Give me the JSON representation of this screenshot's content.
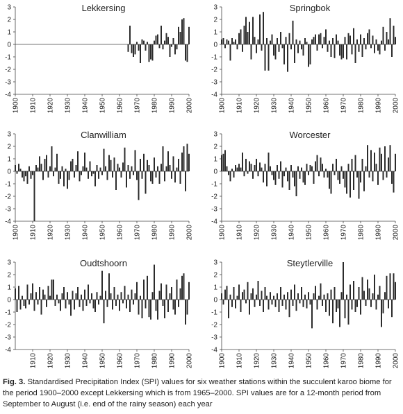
{
  "chart_data": [
    {
      "type": "bar",
      "title": "Lekkersing",
      "color": "#2b2b2b",
      "xlim": [
        1900,
        2000
      ],
      "ylim": [
        -4,
        3
      ],
      "xticks": [
        1900,
        1910,
        1920,
        1930,
        1940,
        1950,
        1960,
        1970,
        1980,
        1990,
        2000
      ],
      "yticks": [
        -4,
        -3,
        -2,
        -1,
        0,
        1,
        2,
        3
      ],
      "x": [
        1965,
        1966,
        1967,
        1968,
        1969,
        1970,
        1971,
        1972,
        1973,
        1974,
        1975,
        1976,
        1977,
        1978,
        1979,
        1980,
        1981,
        1982,
        1983,
        1984,
        1985,
        1986,
        1987,
        1988,
        1989,
        1990,
        1991,
        1992,
        1993,
        1994,
        1995,
        1996,
        1997,
        1998,
        1999,
        2000
      ],
      "values": [
        -0.6,
        1.5,
        -0.7,
        -1.0,
        -0.8,
        0.2,
        -0.5,
        -1.5,
        0.4,
        0.3,
        -0.5,
        0.2,
        -1.4,
        -1.2,
        -1.3,
        0.3,
        0.7,
        0.8,
        -0.3,
        1.5,
        -0.4,
        0.3,
        0.9,
        0.6,
        -1.0,
        -0.2,
        0.5,
        -0.8,
        -0.4,
        1.4,
        1.0,
        2.0,
        2.1,
        -1.3,
        -1.4,
        1.4
      ]
    },
    {
      "type": "bar",
      "title": "Springbok",
      "color": "#2b2b2b",
      "xlim": [
        1900,
        2000
      ],
      "ylim": [
        -4,
        3
      ],
      "xticks": [
        1900,
        1910,
        1920,
        1930,
        1940,
        1950,
        1960,
        1970,
        1980,
        1990,
        2000
      ],
      "yticks": [
        -4,
        -3,
        -2,
        -1,
        0,
        1,
        2,
        3
      ],
      "x": [
        1900,
        1901,
        1902,
        1903,
        1904,
        1905,
        1906,
        1907,
        1908,
        1909,
        1910,
        1911,
        1912,
        1913,
        1914,
        1915,
        1916,
        1917,
        1918,
        1919,
        1920,
        1921,
        1922,
        1923,
        1924,
        1925,
        1926,
        1927,
        1928,
        1929,
        1930,
        1931,
        1932,
        1933,
        1934,
        1935,
        1936,
        1937,
        1938,
        1939,
        1940,
        1941,
        1942,
        1943,
        1944,
        1945,
        1946,
        1947,
        1948,
        1949,
        1950,
        1951,
        1952,
        1953,
        1954,
        1955,
        1956,
        1957,
        1958,
        1959,
        1960,
        1961,
        1962,
        1963,
        1964,
        1965,
        1966,
        1967,
        1968,
        1969,
        1970,
        1971,
        1972,
        1973,
        1974,
        1975,
        1976,
        1977,
        1978,
        1979,
        1980,
        1981,
        1982,
        1983,
        1984,
        1985,
        1986,
        1987,
        1988,
        1989,
        1990,
        1991,
        1992,
        1993,
        1994,
        1995,
        1996,
        1997,
        1998,
        1999,
        2000
      ],
      "values": [
        0.4,
        0.5,
        -0.3,
        0.4,
        0.3,
        -1.3,
        0.5,
        0.2,
        0.4,
        -0.4,
        0.9,
        1.2,
        -0.6,
        1.5,
        2.2,
        1.0,
        1.8,
        -1.2,
        2.2,
        0.6,
        -0.7,
        0.4,
        2.4,
        -0.5,
        2.6,
        -2.1,
        0.5,
        -2.1,
        0.3,
        0.8,
        -0.9,
        -1.2,
        0.5,
        -0.6,
        1.0,
        -0.3,
        -1.6,
        0.6,
        -2.2,
        0.9,
        -0.4,
        1.9,
        -1.5,
        0.4,
        -0.7,
        0.3,
        -0.4,
        -0.9,
        0.5,
        0.2,
        -1.8,
        -1.6,
        0.4,
        0.6,
        0.8,
        -0.5,
        0.8,
        0.9,
        -0.3,
        0.6,
        1.2,
        -0.6,
        0.3,
        -1.0,
        0.5,
        -1.1,
        0.8,
        0.3,
        -0.9,
        -1.2,
        -1.1,
        0.6,
        -1.2,
        0.9,
        0.7,
        -0.8,
        1.3,
        -1.5,
        0.4,
        -0.6,
        0.8,
        -1.0,
        0.5,
        -0.4,
        0.9,
        1.2,
        -0.3,
        0.7,
        -0.7,
        0.4,
        -0.5,
        -0.8,
        0.3,
        1.4,
        -0.5,
        1.0,
        0.4,
        2.1,
        -1.0,
        1.5,
        0.6
      ]
    },
    {
      "type": "bar",
      "title": "Clanwilliam",
      "color": "#2b2b2b",
      "xlim": [
        1900,
        2000
      ],
      "ylim": [
        -4,
        3
      ],
      "xticks": [
        1900,
        1910,
        1920,
        1930,
        1940,
        1950,
        1960,
        1970,
        1980,
        1990,
        2000
      ],
      "yticks": [
        -4,
        -3,
        -2,
        -1,
        0,
        1,
        2,
        3
      ],
      "x": [
        1900,
        1901,
        1902,
        1903,
        1904,
        1905,
        1906,
        1907,
        1908,
        1909,
        1910,
        1911,
        1912,
        1913,
        1914,
        1915,
        1916,
        1917,
        1918,
        1919,
        1920,
        1921,
        1922,
        1923,
        1924,
        1925,
        1926,
        1927,
        1928,
        1929,
        1930,
        1931,
        1932,
        1933,
        1934,
        1935,
        1936,
        1937,
        1938,
        1939,
        1940,
        1941,
        1942,
        1943,
        1944,
        1945,
        1946,
        1947,
        1948,
        1949,
        1950,
        1951,
        1952,
        1953,
        1954,
        1955,
        1956,
        1957,
        1958,
        1959,
        1960,
        1961,
        1962,
        1963,
        1964,
        1965,
        1966,
        1967,
        1968,
        1969,
        1970,
        1971,
        1972,
        1973,
        1974,
        1975,
        1976,
        1977,
        1978,
        1979,
        1980,
        1981,
        1982,
        1983,
        1984,
        1985,
        1986,
        1987,
        1988,
        1989,
        1990,
        1991,
        1992,
        1993,
        1994,
        1995,
        1996,
        1997,
        1998,
        1999,
        2000
      ],
      "values": [
        0.5,
        -0.2,
        0.6,
        0.2,
        -0.5,
        -0.8,
        -0.4,
        -1.0,
        0.4,
        -0.6,
        -0.3,
        -4.0,
        0.5,
        0.3,
        1.2,
        0.6,
        -0.7,
        1.0,
        1.3,
        -0.5,
        0.4,
        2.0,
        -0.4,
        0.3,
        1.4,
        -1.0,
        -0.6,
        0.4,
        -1.2,
        0.2,
        -1.4,
        -0.7,
        0.8,
        1.0,
        -0.5,
        0.5,
        1.6,
        -0.8,
        -0.3,
        0.4,
        1.5,
        0.3,
        -0.6,
        0.8,
        -0.4,
        -0.2,
        -1.2,
        0.5,
        -0.6,
        0.3,
        -0.3,
        1.8,
        0.4,
        -0.7,
        1.3,
        0.9,
        -0.5,
        1.1,
        -1.5,
        0.6,
        0.3,
        -0.5,
        0.7,
        1.9,
        -1.3,
        0.5,
        -0.6,
        0.4,
        -0.3,
        1.7,
        -0.7,
        -2.3,
        1.0,
        -0.6,
        1.4,
        -1.8,
        0.9,
        0.5,
        -0.8,
        -1.0,
        1.1,
        -0.5,
        0.4,
        -1.0,
        0.6,
        2.0,
        -0.8,
        0.4,
        1.6,
        0.5,
        -0.6,
        1.2,
        -0.9,
        0.3,
        1.0,
        -1.0,
        1.5,
        2.0,
        -1.6,
        2.2,
        1.4
      ]
    },
    {
      "type": "bar",
      "title": "Worcester",
      "color": "#2b2b2b",
      "xlim": [
        1900,
        2000
      ],
      "ylim": [
        -4,
        3
      ],
      "xticks": [
        1900,
        1910,
        1920,
        1930,
        1940,
        1950,
        1960,
        1970,
        1980,
        1990,
        2000
      ],
      "yticks": [
        -4,
        -3,
        -2,
        -1,
        0,
        1,
        2,
        3
      ],
      "x": [
        1900,
        1901,
        1902,
        1903,
        1904,
        1905,
        1906,
        1907,
        1908,
        1909,
        1910,
        1911,
        1912,
        1913,
        1914,
        1915,
        1916,
        1917,
        1918,
        1919,
        1920,
        1921,
        1922,
        1923,
        1924,
        1925,
        1926,
        1927,
        1928,
        1929,
        1930,
        1931,
        1932,
        1933,
        1934,
        1935,
        1936,
        1937,
        1938,
        1939,
        1940,
        1941,
        1942,
        1943,
        1944,
        1945,
        1946,
        1947,
        1948,
        1949,
        1950,
        1951,
        1952,
        1953,
        1954,
        1955,
        1956,
        1957,
        1958,
        1959,
        1960,
        1961,
        1962,
        1963,
        1964,
        1965,
        1966,
        1967,
        1968,
        1969,
        1970,
        1971,
        1972,
        1973,
        1974,
        1975,
        1976,
        1977,
        1978,
        1979,
        1980,
        1981,
        1982,
        1983,
        1984,
        1985,
        1986,
        1987,
        1988,
        1989,
        1990,
        1991,
        1992,
        1993,
        1994,
        1995,
        1996,
        1997,
        1998,
        1999,
        2000
      ],
      "values": [
        1.3,
        1.4,
        1.7,
        0.4,
        -0.3,
        -0.8,
        0.2,
        -0.5,
        0.5,
        0.3,
        0.6,
        0.3,
        1.5,
        -0.4,
        1.0,
        -0.2,
        0.8,
        0.6,
        -0.6,
        0.5,
        1.0,
        -0.4,
        0.7,
        0.3,
        -0.9,
        0.6,
        -1.2,
        1.5,
        0.4,
        -0.3,
        -0.7,
        -1.1,
        0.5,
        -0.6,
        0.8,
        -1.3,
        -0.4,
        0.3,
        -0.8,
        -1.5,
        0.5,
        -0.5,
        -1.2,
        -2.0,
        0.4,
        -0.6,
        0.3,
        -0.9,
        -1.1,
        0.6,
        -0.3,
        0.5,
        0.4,
        -1.0,
        0.8,
        1.3,
        -0.4,
        1.1,
        0.6,
        -0.5,
        0.2,
        -0.5,
        -1.4,
        -1.8,
        0.6,
        -0.3,
        1.0,
        -0.7,
        -1.0,
        0.4,
        -0.6,
        -1.3,
        -1.8,
        0.6,
        -2.1,
        1.0,
        -1.5,
        1.3,
        -0.5,
        -2.2,
        -0.9,
        1.0,
        -1.6,
        0.4,
        2.1,
        -0.5,
        1.7,
        -0.8,
        1.5,
        0.6,
        -1.1,
        1.9,
        1.4,
        -0.7,
        2.0,
        -0.5,
        1.1,
        2.1,
        -1.0,
        -1.7,
        1.4
      ]
    },
    {
      "type": "bar",
      "title": "Oudtshoorn",
      "color": "#2b2b2b",
      "xlim": [
        1900,
        2000
      ],
      "ylim": [
        -4,
        3
      ],
      "xticks": [
        1910,
        1920,
        1930,
        1940,
        1950,
        1960,
        1970,
        1980,
        1990,
        2000
      ],
      "yticks": [
        -4,
        -3,
        -2,
        -1,
        0,
        1,
        2,
        3
      ],
      "x": [
        1900,
        1901,
        1902,
        1903,
        1904,
        1905,
        1906,
        1907,
        1908,
        1909,
        1910,
        1911,
        1912,
        1913,
        1914,
        1915,
        1916,
        1917,
        1918,
        1919,
        1920,
        1921,
        1922,
        1923,
        1924,
        1925,
        1926,
        1927,
        1928,
        1929,
        1930,
        1931,
        1932,
        1933,
        1934,
        1935,
        1936,
        1937,
        1938,
        1939,
        1940,
        1941,
        1942,
        1943,
        1944,
        1945,
        1946,
        1947,
        1948,
        1949,
        1950,
        1951,
        1952,
        1953,
        1954,
        1955,
        1956,
        1957,
        1958,
        1959,
        1960,
        1961,
        1962,
        1963,
        1964,
        1965,
        1966,
        1967,
        1968,
        1969,
        1970,
        1971,
        1972,
        1973,
        1974,
        1975,
        1976,
        1977,
        1978,
        1979,
        1980,
        1981,
        1982,
        1983,
        1984,
        1985,
        1986,
        1987,
        1988,
        1989,
        1990,
        1991,
        1992,
        1993,
        1994,
        1995,
        1996,
        1997,
        1998,
        1999,
        2000
      ],
      "values": [
        0.9,
        -1.0,
        1.1,
        -0.8,
        0.3,
        -0.5,
        -0.7,
        1.2,
        -0.4,
        0.5,
        1.3,
        -0.9,
        0.6,
        -0.4,
        1.0,
        -1.2,
        0.8,
        0.4,
        -0.6,
        1.1,
        0.3,
        1.6,
        1.6,
        -0.5,
        0.4,
        -0.3,
        -0.9,
        0.5,
        1.0,
        -0.7,
        0.6,
        -0.4,
        -1.3,
        0.7,
        -0.8,
        0.5,
        1.0,
        -0.6,
        0.4,
        -0.9,
        0.8,
        -0.5,
        1.2,
        -0.3,
        0.5,
        -0.7,
        -1.0,
        0.6,
        -0.4,
        0.3,
        2.3,
        -1.9,
        0.7,
        -0.6,
        2.1,
        0.5,
        -0.8,
        1.0,
        -0.5,
        0.4,
        -0.9,
        0.6,
        -0.3,
        1.1,
        -0.7,
        0.4,
        -1.0,
        0.8,
        -0.4,
        0.5,
        1.4,
        -1.2,
        0.3,
        -1.5,
        1.6,
        -0.7,
        1.9,
        -1.4,
        -1.6,
        0.6,
        2.8,
        -0.9,
        -1.6,
        0.7,
        1.3,
        -0.5,
        -1.5,
        1.2,
        -1.0,
        0.5,
        1.0,
        -0.8,
        -1.2,
        1.6,
        -0.6,
        0.9,
        1.9,
        2.1,
        -2.0,
        -1.2,
        1.4
      ]
    },
    {
      "type": "bar",
      "title": "Steytlerville",
      "color": "#2b2b2b",
      "xlim": [
        1900,
        2000
      ],
      "ylim": [
        -4,
        3
      ],
      "xticks": [
        1900,
        1910,
        1920,
        1930,
        1940,
        1950,
        1960,
        1970,
        1980,
        1990,
        2000
      ],
      "yticks": [
        -4,
        -3,
        -2,
        -1,
        0,
        1,
        2,
        3
      ],
      "x": [
        1900,
        1901,
        1902,
        1903,
        1904,
        1905,
        1906,
        1907,
        1908,
        1909,
        1910,
        1911,
        1912,
        1913,
        1914,
        1915,
        1916,
        1917,
        1918,
        1919,
        1920,
        1921,
        1922,
        1923,
        1924,
        1925,
        1926,
        1927,
        1928,
        1929,
        1930,
        1931,
        1932,
        1933,
        1934,
        1935,
        1936,
        1937,
        1938,
        1939,
        1940,
        1941,
        1942,
        1943,
        1944,
        1945,
        1946,
        1947,
        1948,
        1949,
        1950,
        1951,
        1952,
        1953,
        1954,
        1955,
        1956,
        1957,
        1958,
        1959,
        1960,
        1961,
        1962,
        1963,
        1964,
        1965,
        1966,
        1967,
        1968,
        1969,
        1970,
        1971,
        1972,
        1973,
        1974,
        1975,
        1976,
        1977,
        1978,
        1979,
        1980,
        1981,
        1982,
        1983,
        1984,
        1985,
        1986,
        1987,
        1988,
        1989,
        1990,
        1991,
        1992,
        1993,
        1994,
        1995,
        1996,
        1997,
        1998,
        1999,
        2000
      ],
      "values": [
        0.5,
        -0.4,
        0.8,
        1.1,
        -1.5,
        0.4,
        -0.6,
        1.0,
        -0.7,
        0.3,
        1.2,
        -1.0,
        0.6,
        0.8,
        -0.3,
        1.4,
        -1.2,
        0.5,
        0.9,
        -0.6,
        0.4,
        1.5,
        -0.5,
        0.7,
        -1.0,
        1.0,
        0.3,
        -0.8,
        0.6,
        -0.4,
        0.3,
        -0.6,
        0.5,
        -1.0,
        1.0,
        -0.5,
        0.4,
        -0.8,
        0.6,
        -1.4,
        0.8,
        -0.5,
        1.2,
        -0.9,
        0.5,
        -0.3,
        1.0,
        -0.6,
        0.4,
        -0.7,
        0.6,
        -0.4,
        -2.3,
        0.5,
        1.1,
        -0.8,
        0.3,
        1.3,
        -0.5,
        0.4,
        -1.0,
        0.5,
        -1.3,
        0.8,
        -1.9,
        1.0,
        -1.0,
        -0.7,
        -2.2,
        0.6,
        3.0,
        -1.5,
        0.4,
        -2.0,
        1.2,
        -0.8,
        1.5,
        -1.0,
        -0.6,
        1.0,
        -1.2,
        1.8,
        0.7,
        -0.5,
        1.6,
        0.9,
        -0.6,
        0.5,
        2.0,
        -0.8,
        0.4,
        1.1,
        -2.2,
        -1.1,
        0.6,
        1.9,
        -0.7,
        2.1,
        -1.4,
        2.1,
        1.4
      ]
    }
  ],
  "caption": {
    "label": "Fig. 3.",
    "text": "Standardised Precipitation Index (SPI) values for six weather stations within the succulent karoo biome for the period 1900–2000 except Lekkersing which is from 1965–2000. SPI values are for a 12-month period from September to August (i.e. end of the rainy season) each year"
  }
}
